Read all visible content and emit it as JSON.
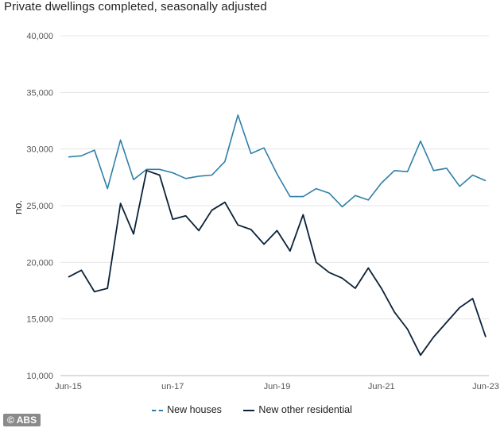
{
  "source_label": "© ABS",
  "chart_data": {
    "type": "line",
    "title": "Private dwellings completed, seasonally adjusted",
    "xlabel": "",
    "ylabel": "no.",
    "ylim": [
      10000,
      40000
    ],
    "yticks": [
      10000,
      15000,
      20000,
      25000,
      30000,
      35000,
      40000
    ],
    "ytick_labels": [
      "10,000",
      "15,000",
      "20,000",
      "25,000",
      "30,000",
      "35,000",
      "40,000"
    ],
    "xtick_labels": [
      {
        "label": "Jun-15",
        "index": 0
      },
      {
        "label": "un-17",
        "index": 8
      },
      {
        "label": "Jun-19",
        "index": 16
      },
      {
        "label": "Jun-21",
        "index": 24
      },
      {
        "label": "Jun-23",
        "index": 32
      }
    ],
    "grid": true,
    "legend_position": "bottom",
    "series": [
      {
        "name": "New houses",
        "legend_label": "New houses",
        "color": "#2e7fa8",
        "values": [
          29300,
          29400,
          29900,
          26500,
          30800,
          27300,
          28200,
          28200,
          27900,
          27400,
          27600,
          27700,
          28900,
          33000,
          29600,
          30100,
          27800,
          25800,
          25800,
          26500,
          26100,
          24900,
          25900,
          25500,
          27000,
          28100,
          28000,
          30700,
          28100,
          28300,
          26700,
          27700,
          27200
        ]
      },
      {
        "name": "New other residential",
        "legend_label": "New other residential",
        "color": "#0b2239",
        "values": [
          18700,
          19300,
          17400,
          17700,
          25200,
          22500,
          28100,
          27700,
          23800,
          24100,
          22800,
          24600,
          25300,
          23300,
          22900,
          21600,
          22800,
          21000,
          24200,
          20000,
          19100,
          18600,
          17700,
          19500,
          17700,
          15600,
          14100,
          11800,
          13400,
          14700,
          16000,
          16800,
          13400
        ]
      }
    ]
  }
}
